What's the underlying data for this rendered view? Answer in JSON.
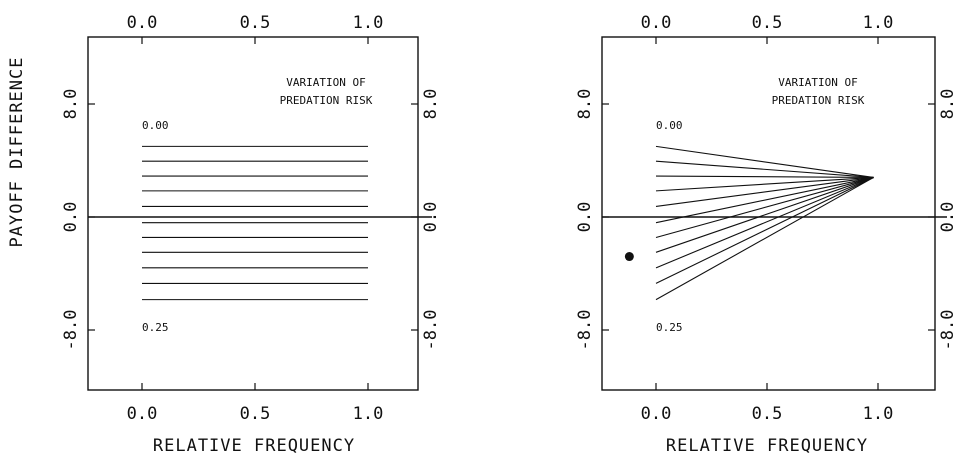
{
  "chart_data": [
    {
      "type": "line",
      "title": "",
      "xlabel": "RELATIVE FREQUENCY",
      "ylabel": "PAYOFF DIFFERENCE",
      "xlim": [
        -0.25,
        1.25
      ],
      "ylim": [
        -11.5,
        12.0
      ],
      "x_ticks": [
        "0.0",
        "0.5",
        "1.0"
      ],
      "y_ticks": [
        "8.0",
        "0.0",
        "-8.0"
      ],
      "grid": false,
      "annotations": {
        "legend_title_line1": "VARIATION OF",
        "legend_title_line2": "PREDATION RISK",
        "top_label": "0.00",
        "bottom_label": "0.25"
      },
      "series": [
        {
          "x": [
            0.0,
            1.0
          ],
          "y": [
            5.0,
            5.0
          ]
        },
        {
          "x": [
            0.0,
            1.0
          ],
          "y": [
            3.95,
            3.95
          ]
        },
        {
          "x": [
            0.0,
            1.0
          ],
          "y": [
            2.9,
            2.9
          ]
        },
        {
          "x": [
            0.0,
            1.0
          ],
          "y": [
            1.85,
            1.85
          ]
        },
        {
          "x": [
            0.0,
            1.0
          ],
          "y": [
            0.75,
            0.75
          ]
        },
        {
          "x": [
            0.0,
            1.0
          ],
          "y": [
            -0.4,
            -0.4
          ]
        },
        {
          "x": [
            0.0,
            1.0
          ],
          "y": [
            -1.45,
            -1.45
          ]
        },
        {
          "x": [
            0.0,
            1.0
          ],
          "y": [
            -2.5,
            -2.5
          ]
        },
        {
          "x": [
            0.0,
            1.0
          ],
          "y": [
            -3.6,
            -3.6
          ]
        },
        {
          "x": [
            0.0,
            1.0
          ],
          "y": [
            -4.7,
            -4.7
          ]
        },
        {
          "x": [
            0.0,
            1.0
          ],
          "y": [
            -5.85,
            -5.85
          ]
        }
      ]
    },
    {
      "type": "line",
      "title": "",
      "xlabel": "RELATIVE FREQUENCY",
      "ylabel": "",
      "xlim": [
        -0.25,
        1.25
      ],
      "ylim": [
        -11.5,
        12.0
      ],
      "x_ticks": [
        "0.0",
        "0.5",
        "1.0"
      ],
      "y_ticks": [
        "8.0",
        "0.0",
        "-8.0"
      ],
      "grid": false,
      "annotations": {
        "legend_title_line1": "VARIATION OF",
        "legend_title_line2": "PREDATION RISK",
        "top_label": "0.00",
        "bottom_label": "0.25"
      },
      "series": [
        {
          "x": [
            0.0,
            0.98
          ],
          "y": [
            5.0,
            2.8
          ]
        },
        {
          "x": [
            0.0,
            0.98
          ],
          "y": [
            3.95,
            2.8
          ]
        },
        {
          "x": [
            0.0,
            0.98
          ],
          "y": [
            2.9,
            2.8
          ]
        },
        {
          "x": [
            0.0,
            0.98
          ],
          "y": [
            1.85,
            2.8
          ]
        },
        {
          "x": [
            0.0,
            0.98
          ],
          "y": [
            0.75,
            2.8
          ]
        },
        {
          "x": [
            0.0,
            0.98
          ],
          "y": [
            -0.4,
            2.8
          ]
        },
        {
          "x": [
            0.0,
            0.98
          ],
          "y": [
            -1.45,
            2.8
          ]
        },
        {
          "x": [
            0.0,
            0.98
          ],
          "y": [
            -2.5,
            2.8
          ]
        },
        {
          "x": [
            0.0,
            0.98
          ],
          "y": [
            -3.6,
            2.8
          ]
        },
        {
          "x": [
            0.0,
            0.98
          ],
          "y": [
            -4.7,
            2.8
          ]
        },
        {
          "x": [
            0.0,
            0.98
          ],
          "y": [
            -5.85,
            2.8
          ]
        }
      ],
      "points": [
        {
          "x": -0.12,
          "y": -2.8
        }
      ]
    }
  ]
}
